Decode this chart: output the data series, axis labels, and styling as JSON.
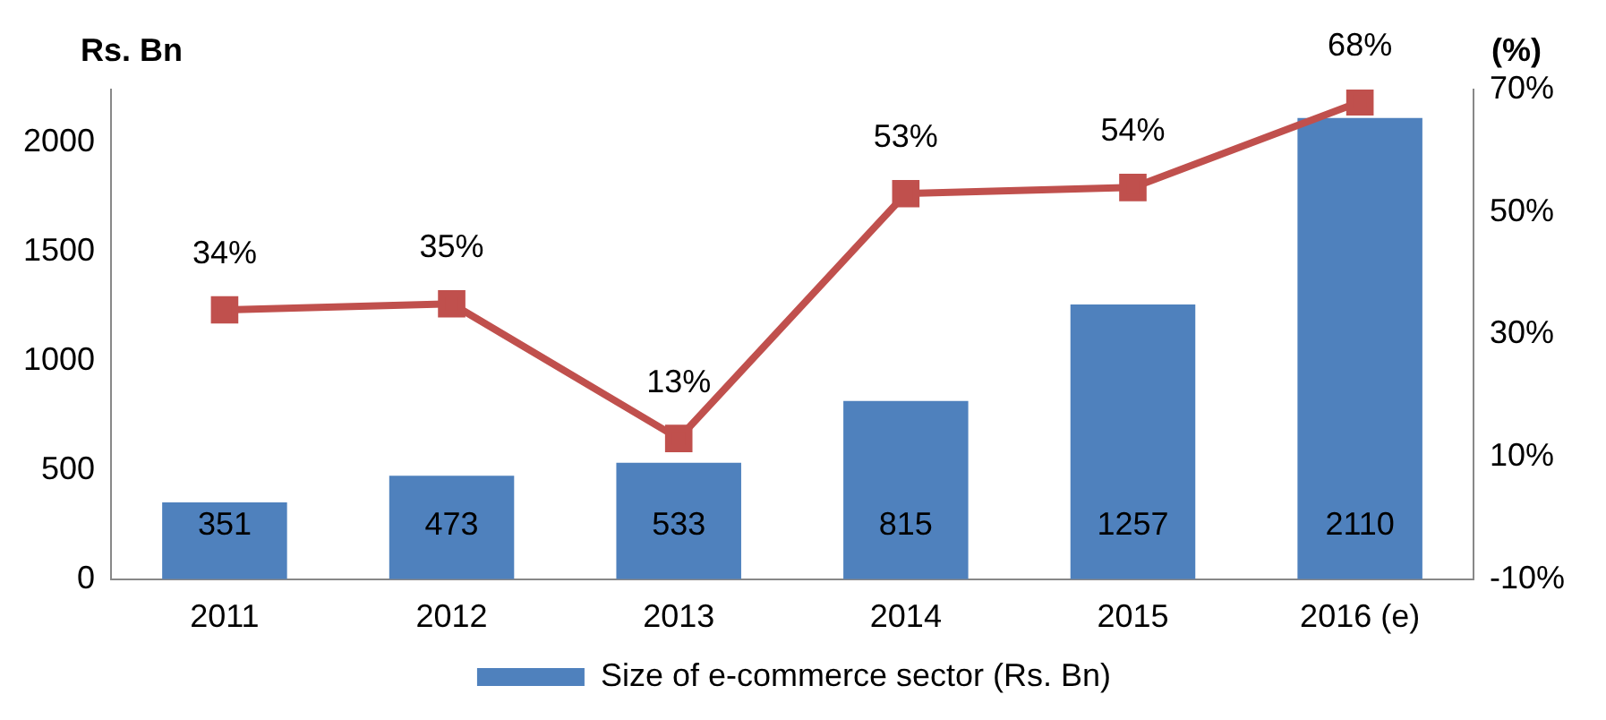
{
  "chart_data": {
    "type": "bar",
    "ylabel": "Rs. Bn",
    "y2label": "(%)",
    "categories": [
      "2011",
      "2012",
      "2013",
      "2014",
      "2015",
      "2016 (e)"
    ],
    "series": [
      {
        "name": "Size of e-commerce sector (Rs. Bn)",
        "color": "#4f81bd",
        "values": [
          351,
          473,
          533,
          815,
          1257,
          2110
        ],
        "value_labels": [
          "351",
          "473",
          "533",
          "815",
          "1257",
          "2110"
        ]
      },
      {
        "type": "line",
        "axis": "y2",
        "color": "#c0504d",
        "values": [
          34,
          35,
          13,
          53,
          54,
          68
        ],
        "value_labels": [
          "34%",
          "35%",
          "13%",
          "53%",
          "54%",
          "68%"
        ],
        "marker": "square"
      }
    ],
    "ylim": [
      0,
      2240
    ],
    "yticks": [
      0,
      500,
      1000,
      1500,
      2000
    ],
    "y2lim": [
      -10,
      70
    ],
    "y2ticks": [
      {
        "value": -10,
        "label": "-10%"
      },
      {
        "value": 10,
        "label": "10%"
      },
      {
        "value": 30,
        "label": "30%"
      },
      {
        "value": 50,
        "label": "50%"
      },
      {
        "value": 70,
        "label": "70%"
      }
    ],
    "grid": false,
    "legend": "bottom"
  }
}
